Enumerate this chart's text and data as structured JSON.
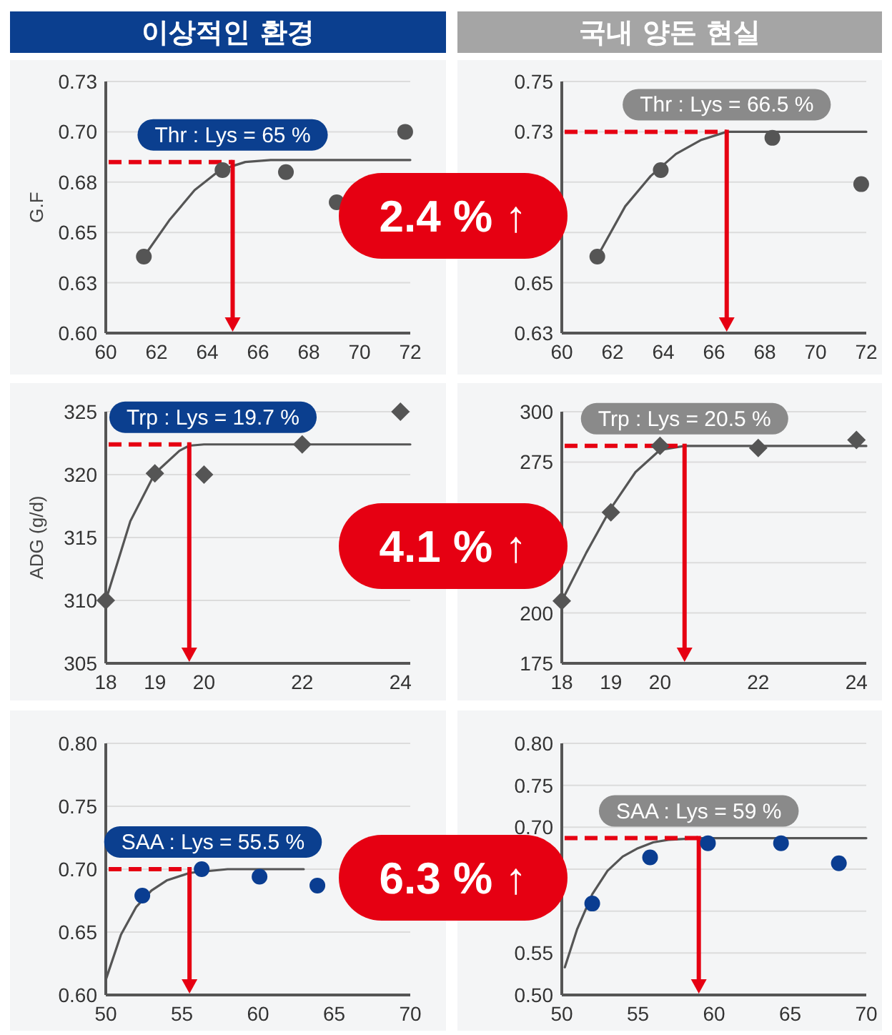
{
  "chart_data": [
    {
      "type": "scatter",
      "title": "이상적인 환경",
      "ylabel": "G.F",
      "grid": "y",
      "x": [
        61.5,
        64.6,
        67.1,
        69.1,
        71.8
      ],
      "series": [
        {
          "color": "#555555",
          "marker": "circle",
          "values": [
            0.638,
            0.681,
            0.68,
            0.665,
            0.7
          ]
        },
        {
          "type": "line",
          "color": "#555555",
          "marker": "none",
          "x": [
            61.5,
            62.5,
            63.5,
            64.5,
            65.5,
            66.5,
            72
          ],
          "values": [
            0.638,
            0.656,
            0.671,
            0.681,
            0.685,
            0.686,
            0.686
          ]
        }
      ],
      "xlim": [
        60,
        72
      ],
      "xticks": [
        60,
        62,
        64,
        66,
        68,
        70,
        72
      ],
      "ylim": [
        0.6,
        0.725
      ],
      "yticks": [
        {
          "value": 0.6,
          "label": "0.60"
        },
        {
          "value": 0.625,
          "label": "0.63"
        },
        {
          "value": 0.65,
          "label": "0.65"
        },
        {
          "value": 0.675,
          "label": "0.68"
        },
        {
          "value": 0.7,
          "label": "0.70"
        },
        {
          "value": 0.725,
          "label": "0.73"
        }
      ],
      "ref_lines": [
        {
          "axis": "y",
          "value": 0.685,
          "color": "#e60012",
          "line_style": "dashed"
        },
        {
          "axis": "x",
          "value": 65,
          "label": "Thr : Lys = 65 %",
          "color": "#e60012"
        }
      ]
    },
    {
      "type": "scatter",
      "title": "국내 양돈 현실",
      "grid": "y",
      "annotations": [
        "2.4 % ↑"
      ],
      "x": [
        61.4,
        63.9,
        68.3,
        71.8
      ],
      "series": [
        {
          "color": "#555555",
          "marker": "circle",
          "values": [
            0.663,
            0.706,
            0.722,
            0.699
          ]
        },
        {
          "type": "line",
          "color": "#555555",
          "marker": "none",
          "x": [
            61.4,
            62.5,
            63.5,
            64.5,
            65.5,
            66.5,
            72
          ],
          "values": [
            0.663,
            0.688,
            0.703,
            0.714,
            0.721,
            0.725,
            0.725
          ]
        }
      ],
      "xlim": [
        60,
        72
      ],
      "xticks": [
        60,
        62,
        64,
        66,
        68,
        70,
        72
      ],
      "ylim": [
        0.625,
        0.75
      ],
      "yticks": [
        {
          "value": 0.625,
          "label": "0.63"
        },
        {
          "value": 0.65,
          "label": "0.65"
        },
        {
          "value": 0.675,
          "label": null
        },
        {
          "value": 0.7,
          "label": null
        },
        {
          "value": 0.725,
          "label": "0.73"
        },
        {
          "value": 0.75,
          "label": "0.75"
        }
      ],
      "ref_lines": [
        {
          "axis": "y",
          "value": 0.725,
          "color": "#e60012",
          "line_style": "dashed"
        },
        {
          "axis": "x",
          "value": 66.5,
          "label": "Thr : Lys = 66.5 %",
          "color": "#e60012"
        }
      ]
    },
    {
      "type": "scatter",
      "ylabel": "ADG (g/d)",
      "grid": "y",
      "x": [
        18,
        19,
        20,
        22,
        24
      ],
      "series": [
        {
          "color": "#555555",
          "marker": "diamond",
          "values": [
            310.0,
            320.1,
            320.0,
            322.4,
            325.0
          ]
        },
        {
          "type": "line",
          "color": "#555555",
          "marker": "none",
          "x": [
            18,
            18.5,
            19,
            19.5,
            19.7,
            20,
            24.2
          ],
          "values": [
            310,
            316.3,
            320.1,
            321.9,
            322.3,
            322.4,
            322.4
          ]
        }
      ],
      "xlim": [
        18,
        24.2
      ],
      "xticks": [
        18,
        19,
        20,
        22,
        24
      ],
      "ylim": [
        305,
        325
      ],
      "yticks": [
        305,
        310,
        315,
        320,
        325
      ],
      "ref_lines": [
        {
          "axis": "y",
          "value": 322.4,
          "color": "#e60012",
          "line_style": "dashed"
        },
        {
          "axis": "x",
          "value": 19.7,
          "label": "Trp : Lys = 19.7 %",
          "color": "#e60012"
        }
      ]
    },
    {
      "type": "scatter",
      "grid": "y",
      "annotations": [
        "4.1 % ↑"
      ],
      "x": [
        18,
        19,
        20,
        22,
        24
      ],
      "series": [
        {
          "color": "#555555",
          "marker": "diamond",
          "values": [
            206,
            250,
            283,
            282,
            286
          ]
        },
        {
          "type": "line",
          "color": "#555555",
          "marker": "none",
          "x": [
            18,
            18.5,
            19,
            19.5,
            20,
            20.5,
            24.2
          ],
          "values": [
            206,
            230,
            252,
            270,
            281,
            283,
            283
          ]
        }
      ],
      "xlim": [
        18,
        24.2
      ],
      "xticks": [
        18,
        19,
        20,
        22,
        24
      ],
      "ylim": [
        175,
        300
      ],
      "yticks": [
        175,
        200,
        {
          "value": 225,
          "label": null
        },
        {
          "value": 250,
          "label": null
        },
        275,
        300
      ],
      "ref_lines": [
        {
          "axis": "y",
          "value": 283,
          "color": "#e60012",
          "line_style": "dashed"
        },
        {
          "axis": "x",
          "value": 20.5,
          "label": "Trp : Lys = 20.5 %",
          "color": "#e60012"
        }
      ]
    },
    {
      "type": "scatter",
      "grid": "y",
      "x": [
        52.4,
        56.3,
        60.1,
        63.9
      ],
      "series": [
        {
          "color": "#0a3d91",
          "marker": "circle",
          "values": [
            0.679,
            0.7,
            0.694,
            0.687
          ]
        },
        {
          "type": "line",
          "color": "#555555",
          "marker": "none",
          "x": [
            50,
            51,
            52,
            53,
            54,
            55.5,
            58,
            63
          ],
          "values": [
            0.612,
            0.648,
            0.67,
            0.683,
            0.691,
            0.697,
            0.7,
            0.7
          ]
        }
      ],
      "xlim": [
        50,
        70
      ],
      "xticks": [
        50,
        55,
        60,
        65,
        70
      ],
      "ylim": [
        0.6,
        0.8
      ],
      "yticks": [
        {
          "value": 0.6,
          "label": "0.60"
        },
        {
          "value": 0.65,
          "label": "0.65"
        },
        {
          "value": 0.7,
          "label": "0.70"
        },
        {
          "value": 0.75,
          "label": "0.75"
        },
        {
          "value": 0.8,
          "label": "0.80"
        }
      ],
      "ref_lines": [
        {
          "axis": "y",
          "value": 0.7,
          "color": "#e60012",
          "line_style": "dashed"
        },
        {
          "axis": "x",
          "value": 55.5,
          "label": "SAA : Lys = 55.5 %",
          "color": "#e60012"
        }
      ]
    },
    {
      "type": "scatter",
      "grid": "y",
      "annotations": [
        "6.3 % ↑"
      ],
      "x": [
        52.0,
        55.8,
        59.6,
        64.4,
        68.2
      ],
      "series": [
        {
          "color": "#0a3d91",
          "marker": "circle",
          "values": [
            0.609,
            0.664,
            0.681,
            0.681,
            0.657
          ]
        },
        {
          "type": "line",
          "color": "#555555",
          "marker": "none",
          "x": [
            50.2,
            51,
            52,
            53,
            54,
            55,
            56,
            57,
            59,
            70
          ],
          "values": [
            0.533,
            0.578,
            0.62,
            0.648,
            0.665,
            0.675,
            0.682,
            0.685,
            0.687,
            0.687
          ]
        }
      ],
      "xlim": [
        50,
        70
      ],
      "xticks": [
        50,
        55,
        60,
        65,
        70
      ],
      "ylim": [
        0.5,
        0.8
      ],
      "yticks": [
        {
          "value": 0.5,
          "label": "0.50"
        },
        {
          "value": 0.55,
          "label": "0.55"
        },
        {
          "value": 0.6,
          "label": null
        },
        {
          "value": 0.65,
          "label": null
        },
        {
          "value": 0.7,
          "label": "0.70"
        },
        {
          "value": 0.75,
          "label": "0.75"
        },
        {
          "value": 0.8,
          "label": "0.80"
        }
      ],
      "ref_lines": [
        {
          "axis": "y",
          "value": 0.687,
          "color": "#e60012",
          "line_style": "dashed"
        },
        {
          "axis": "x",
          "value": 59,
          "label": "SAA : Lys = 59 %",
          "color": "#e60012"
        }
      ]
    }
  ]
}
